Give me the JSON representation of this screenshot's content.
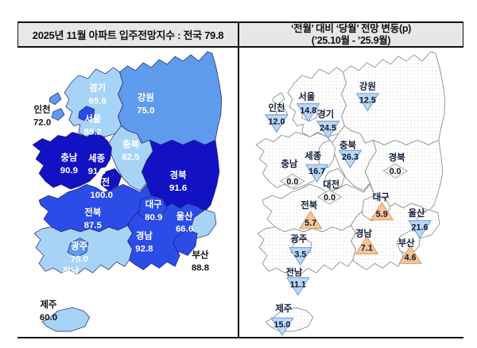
{
  "header_left": {
    "prefix": "2025년 11월 아파트 입주전망지수 : ",
    "emphasis": "전국 79.8"
  },
  "header_right": {
    "line1": "‘전월’ 대비 ‘당월’ 전망 변동(p)",
    "line2": "(’25.10월  -  ’25.9월)"
  },
  "colors": {
    "navy": "#1212C4",
    "royal": "#2C4CE8",
    "cornflower": "#5E9BEC",
    "light": "#A7D4F6",
    "map_stroke": "#1c1c6e",
    "outline_right": "#8f8f8f",
    "dot": "#d2d2d2",
    "down_fill": "#B9D8F4",
    "down_stroke": "#699BD8",
    "up_fill": "#F5C59A",
    "up_stroke": "#DE9A5A",
    "zero_fill": "#F8F8F5",
    "zero_stroke": "#A8A8A8",
    "label_on_map": "#ffffff",
    "label_outside": "#111111",
    "right_name": "#13203d",
    "right_value": "#0e1830"
  },
  "left_map": {
    "regions": [
      {
        "id": "gyeonggi",
        "name": "경기",
        "value": "69.6",
        "tone": "light"
      },
      {
        "id": "gangwon",
        "name": "강원",
        "value": "75.0",
        "tone": "cornflower"
      },
      {
        "id": "incheon",
        "name": "인천",
        "value": "72.0",
        "tone": "cornflower",
        "label_outside": true
      },
      {
        "id": "seoul",
        "name": "서울",
        "value": "85.2",
        "tone": "royal"
      },
      {
        "id": "chungbuk",
        "name": "충북",
        "value": "62.5",
        "tone": "light"
      },
      {
        "id": "chungnam",
        "name": "충남",
        "value": "90.9",
        "tone": "navy"
      },
      {
        "id": "sejong",
        "name": "세종",
        "value": "91.6",
        "tone": "navy"
      },
      {
        "id": "daejeon",
        "name": "대전",
        "value": "100.0",
        "tone": "navy"
      },
      {
        "id": "gyeongbuk",
        "name": "경북",
        "value": "91.6",
        "tone": "navy"
      },
      {
        "id": "daegu",
        "name": "대구",
        "value": "80.9",
        "tone": "royal"
      },
      {
        "id": "jeonbuk",
        "name": "전북",
        "value": "87.5",
        "tone": "royal"
      },
      {
        "id": "ulsan",
        "name": "울산",
        "value": "66.6",
        "tone": "light"
      },
      {
        "id": "gyeongnam",
        "name": "경남",
        "value": "92.8",
        "tone": "royal"
      },
      {
        "id": "busan",
        "name": "부산",
        "value": "88.8",
        "tone": "royal",
        "label_outside": true
      },
      {
        "id": "gwangju",
        "name": "광주",
        "value": "75.0",
        "tone": "cornflower"
      },
      {
        "id": "jeonnam",
        "name": "전남",
        "value": "66.6",
        "tone": "light"
      },
      {
        "id": "jeju",
        "name": "제주",
        "value": "60.0",
        "tone": "light",
        "label_outside": true
      }
    ]
  },
  "right_map": {
    "regions": [
      {
        "id": "seoul",
        "name": "서울",
        "value": "14.8",
        "direction": "down"
      },
      {
        "id": "incheon",
        "name": "인천",
        "value": "12.0",
        "direction": "down"
      },
      {
        "id": "gyeonggi",
        "name": "경기",
        "value": "24.5",
        "direction": "down"
      },
      {
        "id": "gangwon",
        "name": "강원",
        "value": "12.5",
        "direction": "down"
      },
      {
        "id": "chungbuk",
        "name": "충북",
        "value": "26.3",
        "direction": "down"
      },
      {
        "id": "sejong",
        "name": "세종",
        "value": "16.7",
        "direction": "down"
      },
      {
        "id": "chungnam",
        "name": "충남",
        "value": "0.0",
        "direction": "zero"
      },
      {
        "id": "daejeon",
        "name": "대전",
        "value": "0.0",
        "direction": "zero"
      },
      {
        "id": "gyeongbuk",
        "name": "경북",
        "value": "0.0",
        "direction": "zero"
      },
      {
        "id": "jeonbuk",
        "name": "전북",
        "value": "5.7",
        "direction": "up"
      },
      {
        "id": "daegu",
        "name": "대구",
        "value": "5.9",
        "direction": "up"
      },
      {
        "id": "ulsan",
        "name": "울산",
        "value": "21.6",
        "direction": "down"
      },
      {
        "id": "gyeongnam",
        "name": "경남",
        "value": "7.1",
        "direction": "up"
      },
      {
        "id": "busan",
        "name": "부산",
        "value": "4.6",
        "direction": "up"
      },
      {
        "id": "gwangju",
        "name": "광주",
        "value": "3.5",
        "direction": "down"
      },
      {
        "id": "jeonnam",
        "name": "전남",
        "value": "11.1",
        "direction": "down"
      },
      {
        "id": "jeju",
        "name": "제주",
        "value": "15.0",
        "direction": "down"
      }
    ]
  },
  "chart_data": [
    {
      "type": "choropleth_map",
      "title": "2025년 11월 아파트 입주전망지수 : 전국 79.8",
      "national_value": 79.8,
      "categories": [
        "서울",
        "인천",
        "경기",
        "강원",
        "충북",
        "충남",
        "세종",
        "대전",
        "경북",
        "대구",
        "전북",
        "울산",
        "경남",
        "부산",
        "광주",
        "전남",
        "제주"
      ],
      "values": [
        85.2,
        72.0,
        69.6,
        75.0,
        62.5,
        90.9,
        91.6,
        100.0,
        91.6,
        80.9,
        87.5,
        66.6,
        92.8,
        88.8,
        75.0,
        66.6,
        60.0
      ],
      "legend_position": "none",
      "color_scale": "darker blue = higher index"
    },
    {
      "type": "choropleth_map",
      "title": "‘전월’ 대비 ‘당월’ 전망 변동(p) (’25.10월 - ’25.9월)",
      "categories": [
        "서울",
        "인천",
        "경기",
        "강원",
        "충북",
        "충남",
        "세종",
        "대전",
        "경북",
        "대구",
        "전북",
        "울산",
        "경남",
        "부산",
        "광주",
        "전남",
        "제주"
      ],
      "values": [
        -14.8,
        -12.0,
        -24.5,
        -12.5,
        -26.3,
        0.0,
        -16.7,
        0.0,
        0.0,
        5.9,
        5.7,
        -21.6,
        7.1,
        4.6,
        -3.5,
        -11.1,
        -15.0
      ],
      "marker_legend": "blue down-triangle = decrease, orange up-triangle = increase, gray diamond = 0.0 no change"
    }
  ]
}
